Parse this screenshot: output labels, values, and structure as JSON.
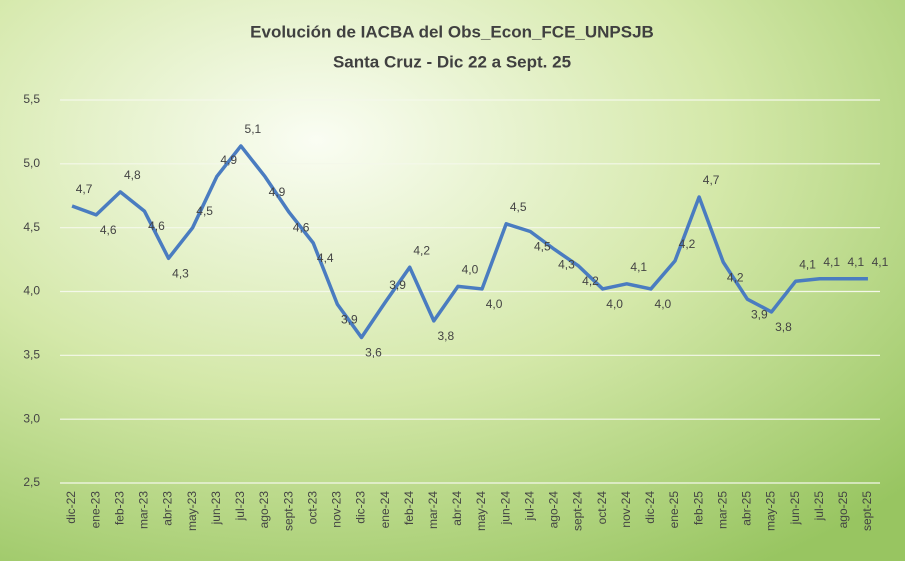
{
  "chart_data": {
    "type": "line",
    "title": "Evolución de IACBA del Obs_Econ_FCE_UNPSJB",
    "subtitle": "Santa Cruz - Dic 22 a Sept. 25",
    "categories": [
      "dic-22",
      "ene-23",
      "feb-23",
      "mar-23",
      "abr-23",
      "may-23",
      "jun-23",
      "jul-23",
      "ago-23",
      "sept-23",
      "oct-23",
      "nov-23",
      "dic-23",
      "ene-24",
      "feb-24",
      "mar-24",
      "abr-24",
      "may-24",
      "jun-24",
      "jul-24",
      "ago-24",
      "sept-24",
      "oct-24",
      "nov-24",
      "dic-24",
      "ene-25",
      "feb-25",
      "mar-25",
      "abr-25",
      "may-25",
      "jun-25",
      "jul-25",
      "ago-25",
      "sept-25"
    ],
    "series": [
      {
        "name": "IACBA",
        "color": "#4a7cc0",
        "values": [
          4.67,
          4.6,
          4.78,
          4.63,
          4.26,
          4.5,
          4.9,
          5.14,
          4.9,
          4.62,
          4.38,
          3.9,
          3.64,
          3.92,
          4.19,
          3.77,
          4.04,
          4.02,
          4.53,
          4.47,
          4.33,
          4.2,
          4.02,
          4.06,
          4.02,
          4.24,
          4.74,
          4.23,
          3.94,
          3.84,
          4.08,
          4.1,
          4.1,
          4.1
        ],
        "value_labels": [
          "4,7",
          "4,6",
          "4,8",
          "4,6",
          "4,3",
          "4,5",
          "4,9",
          "5,1",
          "4,9",
          "4,6",
          "4,4",
          "3,9",
          "3,6",
          "3,9",
          "4,2",
          "3,8",
          "4,0",
          "4,0",
          "4,5",
          "4,5",
          "4,3",
          "4,2",
          "4,0",
          "4,1",
          "4,0",
          "4,2",
          "4,7",
          "4,2",
          "3,9",
          "3,8",
          "4,1",
          "4,1",
          "4,1",
          "4,1"
        ]
      }
    ],
    "ylim": [
      2.5,
      5.5
    ],
    "yticks": [
      {
        "value": 2.5,
        "label": "2,5"
      },
      {
        "value": 3,
        "label": "3,0"
      },
      {
        "value": 3.5,
        "label": "3,5"
      },
      {
        "value": 4,
        "label": "4,0"
      },
      {
        "value": 4.5,
        "label": "4,5"
      },
      {
        "value": 5,
        "label": "5,0"
      },
      {
        "value": 5.5,
        "label": "5,5"
      }
    ],
    "grid": true
  }
}
